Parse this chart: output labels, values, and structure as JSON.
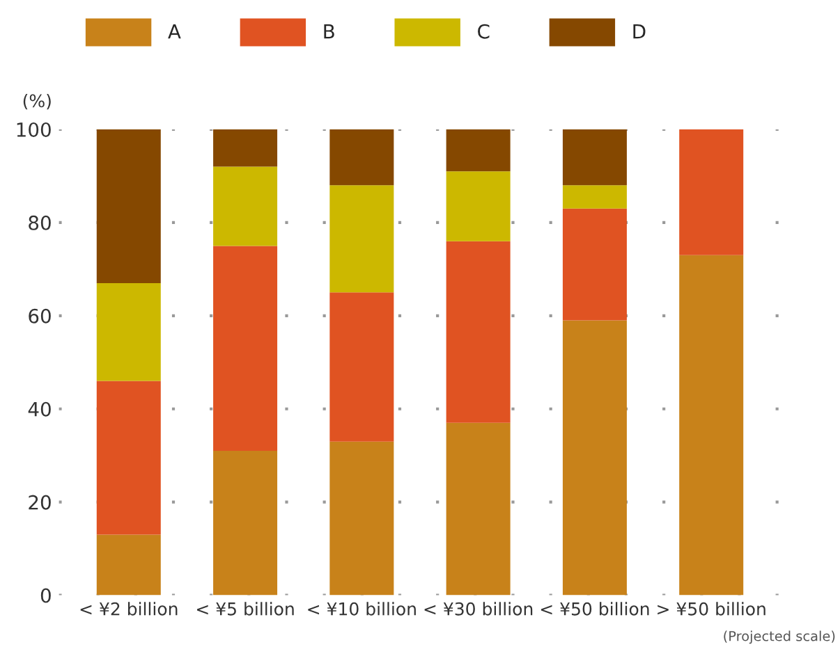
{
  "chart_data": {
    "type": "bar",
    "stacked": true,
    "ylabel": "(%)",
    "categories": [
      "< ¥2 billion",
      "< ¥5 billion",
      "< ¥10 billion",
      "< ¥30 billion",
      "< ¥50 billion",
      "> ¥50 billion"
    ],
    "series": [
      {
        "name": "A",
        "color": "#c8821a",
        "values": [
          13,
          31,
          33,
          37,
          59,
          73
        ]
      },
      {
        "name": "B",
        "color": "#e05322",
        "values": [
          33,
          44,
          32,
          39,
          24,
          27
        ]
      },
      {
        "name": "C",
        "color": "#ccb800",
        "values": [
          21,
          17,
          23,
          15,
          5,
          0
        ]
      },
      {
        "name": "D",
        "color": "#854800",
        "values": [
          33,
          8,
          12,
          9,
          12,
          0
        ]
      }
    ],
    "ylim": [
      0,
      100
    ],
    "yticks": [
      0,
      20,
      40,
      60,
      80,
      100
    ],
    "grid": "y",
    "legend": "top left",
    "annotations": [
      "(Projected scale)"
    ]
  }
}
